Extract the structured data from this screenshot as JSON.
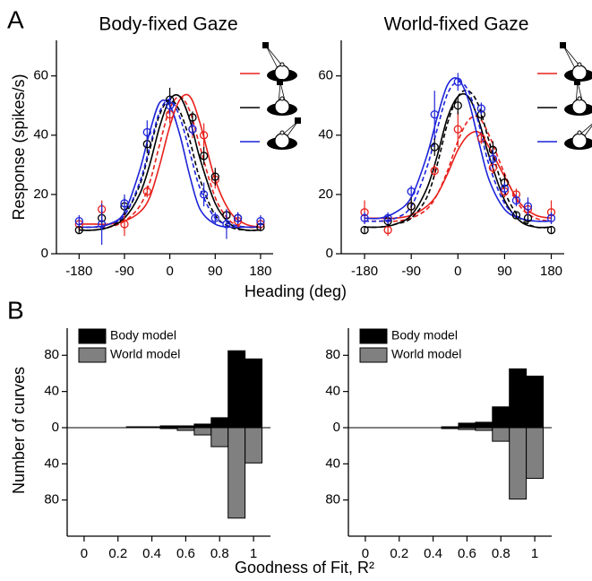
{
  "chart_data": [
    {
      "type": "line",
      "panel": "A",
      "title": "Body-fixed Gaze",
      "ylabel": "Response (spikes/s)",
      "xlabel": "Heading (deg)",
      "xlim": [
        -225,
        205
      ],
      "ylim": [
        0,
        72
      ],
      "xticks": [
        -180,
        -90,
        0,
        90,
        180
      ],
      "yticks": [
        0,
        20,
        40,
        60
      ],
      "points": [
        {
          "color": "#e8211c",
          "x": [
            -180,
            -135,
            -90,
            -45,
            0,
            45,
            67.5,
            90,
            112.5,
            135,
            180
          ],
          "values": [
            10,
            15,
            10,
            21,
            47,
            42,
            40,
            25,
            13,
            11,
            10
          ],
          "errors": [
            2,
            3,
            4,
            2,
            3,
            3,
            4,
            3,
            2,
            2,
            2
          ]
        },
        {
          "color": "#000000",
          "x": [
            -180,
            -135,
            -90,
            -45,
            0,
            45,
            67.5,
            90,
            112.5,
            135,
            180
          ],
          "values": [
            8,
            12,
            16,
            37,
            52,
            46,
            33,
            26,
            13,
            12,
            9
          ],
          "errors": [
            1,
            3,
            3,
            3,
            4,
            2,
            3,
            3,
            2,
            2,
            1
          ]
        },
        {
          "color": "#1c24d8",
          "x": [
            -180,
            -135,
            -90,
            -45,
            0,
            45,
            67.5,
            90,
            112.5,
            135,
            180
          ],
          "values": [
            11,
            10,
            17,
            41,
            50,
            42,
            20,
            12,
            10,
            12,
            11
          ],
          "errors": [
            2,
            7,
            3,
            4,
            3,
            2,
            4,
            2,
            5,
            2,
            2
          ]
        }
      ],
      "series": [
        {
          "color": "#e8211c",
          "dashed": false,
          "x": [
            -180,
            -150,
            -120,
            -90,
            -60,
            -40,
            -20,
            0,
            20,
            40,
            60,
            90,
            120,
            150,
            180
          ],
          "values": [
            10,
            10,
            10,
            11,
            14,
            19,
            30,
            43,
            52,
            53,
            44,
            25,
            14,
            10,
            9
          ]
        },
        {
          "color": "#e8211c",
          "dashed": true,
          "x": [
            -180,
            -150,
            -120,
            -90,
            -60,
            -40,
            -20,
            0,
            20,
            40,
            60,
            90,
            120,
            150,
            180
          ],
          "values": [
            9,
            9,
            9,
            11,
            16,
            24,
            37,
            49,
            53,
            48,
            36,
            19,
            11,
            9,
            9
          ]
        },
        {
          "color": "#000000",
          "dashed": false,
          "x": [
            -180,
            -150,
            -120,
            -90,
            -60,
            -40,
            -20,
            0,
            20,
            40,
            60,
            90,
            120,
            150,
            180
          ],
          "values": [
            8,
            8,
            9,
            12,
            20,
            30,
            43,
            52,
            53,
            45,
            32,
            17,
            10,
            8,
            8
          ]
        },
        {
          "color": "#000000",
          "dashed": true,
          "x": [
            -180,
            -150,
            -120,
            -90,
            -60,
            -40,
            -20,
            0,
            20,
            40,
            60,
            90,
            120,
            150,
            180
          ],
          "values": [
            8,
            8,
            9,
            13,
            23,
            35,
            47,
            52,
            48,
            38,
            25,
            13,
            9,
            8,
            8
          ]
        },
        {
          "color": "#1c24d8",
          "dashed": false,
          "x": [
            -180,
            -150,
            -120,
            -90,
            -60,
            -40,
            -20,
            0,
            20,
            40,
            60,
            90,
            120,
            150,
            180
          ],
          "values": [
            9,
            9,
            10,
            14,
            28,
            41,
            51,
            50,
            40,
            26,
            15,
            10,
            9,
            9,
            9
          ]
        },
        {
          "color": "#1c24d8",
          "dashed": true,
          "x": [
            -180,
            -150,
            -120,
            -90,
            -60,
            -40,
            -20,
            0,
            20,
            40,
            60,
            90,
            120,
            150,
            180
          ],
          "values": [
            9,
            9,
            10,
            13,
            24,
            36,
            48,
            52,
            46,
            34,
            22,
            12,
            10,
            9,
            9
          ]
        }
      ]
    },
    {
      "type": "line",
      "title": "World-fixed Gaze",
      "xlim": [
        -225,
        205
      ],
      "ylim": [
        0,
        72
      ],
      "xticks": [
        -180,
        -90,
        0,
        90,
        180
      ],
      "yticks": [
        0,
        20,
        40,
        60
      ],
      "points": [
        {
          "color": "#e8211c",
          "x": [
            -180,
            -135,
            -90,
            -45,
            0,
            45,
            67.5,
            90,
            112.5,
            135,
            180
          ],
          "values": [
            14,
            8,
            16,
            28,
            42,
            39,
            29,
            21,
            20,
            15,
            14
          ],
          "errors": [
            4,
            2,
            2,
            2,
            6,
            2,
            2,
            2,
            2,
            3,
            4
          ]
        },
        {
          "color": "#000000",
          "x": [
            -180,
            -135,
            -90,
            -45,
            0,
            45,
            67.5,
            90,
            112.5,
            135,
            180
          ],
          "values": [
            8,
            11,
            16,
            36,
            50,
            47,
            35,
            24,
            13,
            12,
            8
          ],
          "errors": [
            1,
            2,
            3,
            3,
            3,
            2,
            3,
            3,
            1,
            2,
            1
          ]
        },
        {
          "color": "#1c24d8",
          "x": [
            -180,
            -135,
            -90,
            -45,
            0,
            45,
            67.5,
            90,
            112.5,
            135,
            180
          ],
          "values": [
            12,
            12,
            21,
            47,
            58,
            49,
            32,
            22,
            18,
            16,
            12
          ],
          "errors": [
            2,
            2,
            2,
            8,
            3,
            2,
            3,
            2,
            2,
            3,
            2
          ]
        }
      ],
      "series": [
        {
          "color": "#e8211c",
          "dashed": false,
          "x": [
            -180,
            -150,
            -120,
            -90,
            -60,
            -40,
            -20,
            0,
            20,
            40,
            60,
            90,
            120,
            150,
            180
          ],
          "values": [
            12,
            12,
            12,
            13,
            16,
            20,
            27,
            35,
            40,
            41,
            36,
            26,
            17,
            13,
            12
          ]
        },
        {
          "color": "#e8211c",
          "dashed": true,
          "x": [
            -180,
            -150,
            -120,
            -90,
            -60,
            -40,
            -20,
            0,
            20,
            40,
            60,
            90,
            120,
            150,
            180
          ],
          "values": [
            11,
            11,
            11,
            12,
            15,
            20,
            28,
            38,
            45,
            46,
            40,
            27,
            16,
            12,
            11
          ]
        },
        {
          "color": "#000000",
          "dashed": false,
          "x": [
            -180,
            -150,
            -120,
            -90,
            -60,
            -40,
            -20,
            0,
            20,
            40,
            60,
            90,
            120,
            150,
            180
          ],
          "values": [
            9,
            9,
            10,
            13,
            22,
            33,
            46,
            53,
            53,
            45,
            33,
            18,
            11,
            9,
            9
          ]
        },
        {
          "color": "#000000",
          "dashed": true,
          "x": [
            -180,
            -150,
            -120,
            -90,
            -60,
            -40,
            -20,
            0,
            20,
            40,
            60,
            90,
            120,
            150,
            180
          ],
          "values": [
            9,
            9,
            10,
            12,
            19,
            30,
            44,
            53,
            55,
            50,
            38,
            21,
            12,
            9,
            9
          ]
        },
        {
          "color": "#1c24d8",
          "dashed": false,
          "x": [
            -180,
            -150,
            -120,
            -90,
            -60,
            -40,
            -20,
            0,
            20,
            40,
            60,
            90,
            120,
            150,
            180
          ],
          "values": [
            12,
            12,
            14,
            19,
            33,
            46,
            57,
            59,
            52,
            38,
            25,
            15,
            12,
            11,
            11
          ]
        },
        {
          "color": "#1c24d8",
          "dashed": true,
          "x": [
            -180,
            -150,
            -120,
            -90,
            -60,
            -40,
            -20,
            0,
            20,
            40,
            60,
            90,
            120,
            150,
            180
          ],
          "values": [
            11,
            11,
            12,
            16,
            29,
            42,
            54,
            58,
            55,
            44,
            30,
            17,
            12,
            11,
            11
          ]
        }
      ]
    },
    {
      "type": "histogram",
      "panel": "B",
      "ylabel": "Number of curves",
      "xlabel": "Goodness of Fit, R²",
      "xlim": [
        -0.1,
        1.1
      ],
      "xticks": [
        0,
        0.2,
        0.4,
        0.6,
        0.8,
        1
      ],
      "ylim_up": [
        0,
        110
      ],
      "yticks_up": [
        0,
        40,
        80
      ],
      "ylim_down": [
        0,
        120
      ],
      "yticks_down": [
        40,
        80
      ],
      "bins": [
        0.25,
        0.35,
        0.45,
        0.55,
        0.65,
        0.75,
        0.85,
        0.95,
        1.05
      ],
      "series": [
        {
          "name": "Body model",
          "color": "#000000",
          "side": "up",
          "values": [
            1,
            1,
            2,
            2,
            4,
            11,
            85,
            76
          ]
        },
        {
          "name": "World model",
          "color": "#808080",
          "side": "down",
          "values": [
            0,
            0,
            1,
            3,
            8,
            21,
            100,
            39
          ]
        }
      ]
    },
    {
      "type": "histogram",
      "xlim": [
        -0.1,
        1.1
      ],
      "xticks": [
        0,
        0.2,
        0.4,
        0.6,
        0.8,
        1
      ],
      "ylim_up": [
        0,
        110
      ],
      "yticks_up": [
        0,
        40,
        80
      ],
      "ylim_down": [
        0,
        120
      ],
      "yticks_down": [
        40,
        80
      ],
      "bins": [
        0.25,
        0.35,
        0.45,
        0.55,
        0.65,
        0.75,
        0.85,
        0.95,
        1.05
      ],
      "series": [
        {
          "name": "Body model",
          "color": "#000000",
          "side": "up",
          "values": [
            0,
            0,
            1,
            5,
            6,
            23,
            65,
            57
          ]
        },
        {
          "name": "World model",
          "color": "#808080",
          "side": "down",
          "values": [
            0,
            0,
            1,
            2,
            3,
            15,
            79,
            56
          ]
        }
      ]
    }
  ]
}
